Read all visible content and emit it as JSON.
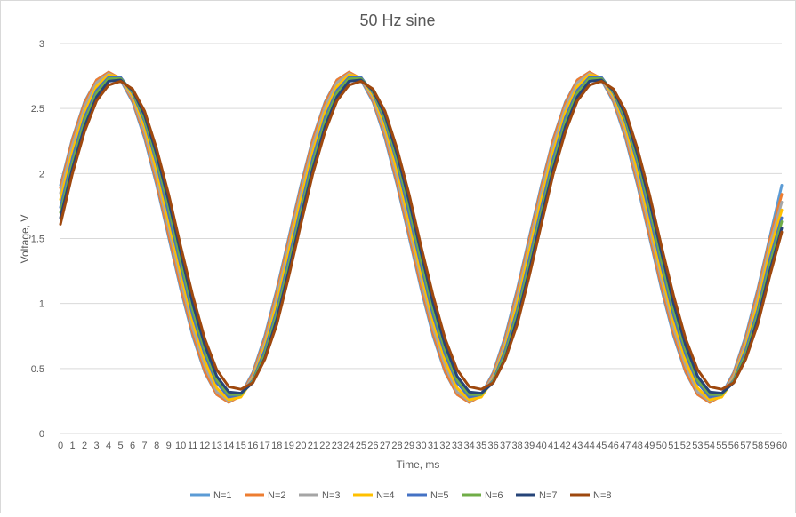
{
  "chart_data": {
    "type": "line",
    "title": "50 Hz sine",
    "xlabel": "Time, ms",
    "ylabel": "Voltage, V",
    "ylim": [
      0,
      3
    ],
    "y_ticks": [
      "0",
      "0.5",
      "1",
      "1.5",
      "2",
      "2.5",
      "3"
    ],
    "x": [
      0,
      1,
      2,
      3,
      4,
      5,
      6,
      7,
      8,
      9,
      10,
      11,
      12,
      13,
      14,
      15,
      16,
      17,
      18,
      19,
      20,
      21,
      22,
      23,
      24,
      25,
      26,
      27,
      28,
      29,
      30,
      31,
      32,
      33,
      34,
      35,
      36,
      37,
      38,
      39,
      40,
      41,
      42,
      43,
      44,
      45,
      46,
      47,
      48,
      49,
      50,
      51,
      52,
      53,
      54,
      55,
      56,
      57,
      58,
      59,
      60
    ],
    "x_tick_labels": [
      "0",
      "1",
      "2",
      "3",
      "4",
      "5",
      "6",
      "7",
      "8",
      "9",
      "10",
      "11",
      "12",
      "13",
      "14",
      "15",
      "16",
      "17",
      "18",
      "19",
      "20",
      "21",
      "22",
      "23",
      "24",
      "25",
      "26",
      "27",
      "28",
      "29",
      "30",
      "31",
      "32",
      "33",
      "34",
      "35",
      "36",
      "37",
      "38",
      "39",
      "40",
      "41",
      "42",
      "43",
      "44",
      "45",
      "46",
      "47",
      "48",
      "49",
      "50",
      "51",
      "52",
      "53",
      "54",
      "55",
      "56",
      "57",
      "58",
      "59",
      "60"
    ],
    "grid": true,
    "legend_position": "bottom",
    "series": [
      {
        "name": "N=1",
        "color": "#5B9BD5",
        "values": [
          1.91,
          2.27,
          2.55,
          2.72,
          2.78,
          2.72,
          2.55,
          2.27,
          1.91,
          1.51,
          1.11,
          0.75,
          0.47,
          0.3,
          0.24,
          0.3,
          0.47,
          0.75,
          1.11,
          1.51,
          1.91,
          2.27,
          2.55,
          2.72,
          2.78,
          2.72,
          2.55,
          2.27,
          1.91,
          1.51,
          1.11,
          0.75,
          0.47,
          0.3,
          0.24,
          0.3,
          0.47,
          0.75,
          1.11,
          1.51,
          1.91,
          2.27,
          2.55,
          2.72,
          2.78,
          2.72,
          2.55,
          2.27,
          1.91,
          1.51,
          1.11,
          0.75,
          0.47,
          0.3,
          0.24,
          0.3,
          0.47,
          0.75,
          1.11,
          1.51,
          1.91
        ]
      },
      {
        "name": "N=2",
        "color": "#ED7D31",
        "values": [
          1.89,
          2.26,
          2.54,
          2.72,
          2.78,
          2.73,
          2.56,
          2.29,
          1.93,
          1.53,
          1.13,
          0.77,
          0.48,
          0.3,
          0.24,
          0.29,
          0.46,
          0.73,
          1.09,
          1.49,
          1.89,
          2.26,
          2.54,
          2.72,
          2.78,
          2.73,
          2.56,
          2.29,
          1.93,
          1.53,
          1.13,
          0.77,
          0.48,
          0.3,
          0.24,
          0.29,
          0.46,
          0.73,
          1.09,
          1.49,
          1.89,
          2.26,
          2.54,
          2.72,
          2.78,
          2.73,
          2.56,
          2.29,
          1.93,
          1.53,
          1.13,
          0.77,
          0.48,
          0.3,
          0.24,
          0.29,
          0.46,
          0.73,
          1.09,
          1.49,
          1.84
        ]
      },
      {
        "name": "N=3",
        "color": "#A5A5A5",
        "values": [
          1.85,
          2.22,
          2.51,
          2.7,
          2.77,
          2.73,
          2.58,
          2.32,
          1.97,
          1.58,
          1.18,
          0.81,
          0.52,
          0.32,
          0.25,
          0.29,
          0.44,
          0.7,
          1.05,
          1.45,
          1.85,
          2.22,
          2.51,
          2.7,
          2.77,
          2.73,
          2.58,
          2.32,
          1.97,
          1.58,
          1.18,
          0.81,
          0.52,
          0.32,
          0.25,
          0.29,
          0.44,
          0.7,
          1.05,
          1.45,
          1.85,
          2.22,
          2.51,
          2.7,
          2.77,
          2.73,
          2.58,
          2.32,
          1.97,
          1.58,
          1.18,
          0.81,
          0.52,
          0.32,
          0.25,
          0.29,
          0.44,
          0.7,
          1.05,
          1.45,
          1.78
        ]
      },
      {
        "name": "N=4",
        "color": "#FFC000",
        "values": [
          1.8,
          2.17,
          2.47,
          2.67,
          2.76,
          2.74,
          2.6,
          2.36,
          2.02,
          1.63,
          1.23,
          0.86,
          0.56,
          0.35,
          0.26,
          0.28,
          0.42,
          0.67,
          1.0,
          1.4,
          1.8,
          2.17,
          2.47,
          2.67,
          2.76,
          2.74,
          2.6,
          2.36,
          2.02,
          1.63,
          1.23,
          0.86,
          0.56,
          0.35,
          0.26,
          0.28,
          0.42,
          0.67,
          1.0,
          1.4,
          1.8,
          2.17,
          2.47,
          2.67,
          2.76,
          2.74,
          2.6,
          2.36,
          2.02,
          1.63,
          1.23,
          0.86,
          0.56,
          0.35,
          0.26,
          0.28,
          0.42,
          0.67,
          1.0,
          1.4,
          1.72
        ]
      },
      {
        "name": "N=5",
        "color": "#4472C4",
        "values": [
          1.74,
          2.12,
          2.43,
          2.64,
          2.74,
          2.74,
          2.62,
          2.4,
          2.08,
          1.69,
          1.29,
          0.91,
          0.61,
          0.39,
          0.28,
          0.3,
          0.41,
          0.64,
          0.95,
          1.34,
          1.74,
          2.12,
          2.43,
          2.64,
          2.74,
          2.74,
          2.62,
          2.4,
          2.08,
          1.69,
          1.29,
          0.91,
          0.61,
          0.39,
          0.28,
          0.3,
          0.41,
          0.64,
          0.95,
          1.34,
          1.74,
          2.12,
          2.43,
          2.64,
          2.74,
          2.74,
          2.62,
          2.4,
          2.08,
          1.69,
          1.29,
          0.91,
          0.61,
          0.39,
          0.28,
          0.3,
          0.41,
          0.64,
          0.95,
          1.34,
          1.66
        ]
      },
      {
        "name": "N=6",
        "color": "#70AD47",
        "values": [
          1.7,
          2.08,
          2.4,
          2.62,
          2.73,
          2.73,
          2.63,
          2.42,
          2.11,
          1.74,
          1.33,
          0.95,
          0.64,
          0.41,
          0.3,
          0.3,
          0.4,
          0.61,
          0.92,
          1.3,
          1.7,
          2.08,
          2.4,
          2.62,
          2.73,
          2.73,
          2.63,
          2.42,
          2.11,
          1.74,
          1.33,
          0.95,
          0.64,
          0.41,
          0.3,
          0.3,
          0.4,
          0.61,
          0.92,
          1.3,
          1.7,
          2.08,
          2.4,
          2.62,
          2.73,
          2.73,
          2.63,
          2.42,
          2.11,
          1.74,
          1.33,
          0.95,
          0.64,
          0.41,
          0.3,
          0.3,
          0.4,
          0.61,
          0.92,
          1.3,
          1.63
        ]
      },
      {
        "name": "N=7",
        "color": "#264478",
        "values": [
          1.66,
          2.04,
          2.36,
          2.59,
          2.71,
          2.72,
          2.64,
          2.45,
          2.15,
          1.79,
          1.39,
          1.0,
          0.68,
          0.44,
          0.32,
          0.31,
          0.39,
          0.58,
          0.88,
          1.25,
          1.66,
          2.04,
          2.36,
          2.59,
          2.71,
          2.72,
          2.64,
          2.45,
          2.15,
          1.79,
          1.39,
          1.0,
          0.68,
          0.44,
          0.32,
          0.31,
          0.39,
          0.58,
          0.88,
          1.25,
          1.66,
          2.04,
          2.36,
          2.59,
          2.71,
          2.72,
          2.64,
          2.45,
          2.15,
          1.79,
          1.39,
          1.0,
          0.68,
          0.44,
          0.32,
          0.31,
          0.39,
          0.58,
          0.88,
          1.25,
          1.58
        ]
      },
      {
        "name": "N=8",
        "color": "#9E480E",
        "values": [
          1.61,
          2.0,
          2.32,
          2.56,
          2.68,
          2.71,
          2.65,
          2.48,
          2.19,
          1.84,
          1.44,
          1.06,
          0.73,
          0.49,
          0.36,
          0.34,
          0.39,
          0.57,
          0.84,
          1.21,
          1.61,
          2.0,
          2.32,
          2.56,
          2.68,
          2.71,
          2.65,
          2.48,
          2.19,
          1.84,
          1.44,
          1.06,
          0.73,
          0.49,
          0.36,
          0.34,
          0.39,
          0.57,
          0.84,
          1.21,
          1.61,
          2.0,
          2.32,
          2.56,
          2.68,
          2.71,
          2.65,
          2.48,
          2.19,
          1.84,
          1.44,
          1.06,
          0.73,
          0.49,
          0.36,
          0.34,
          0.39,
          0.57,
          0.84,
          1.21,
          1.55
        ]
      }
    ]
  }
}
